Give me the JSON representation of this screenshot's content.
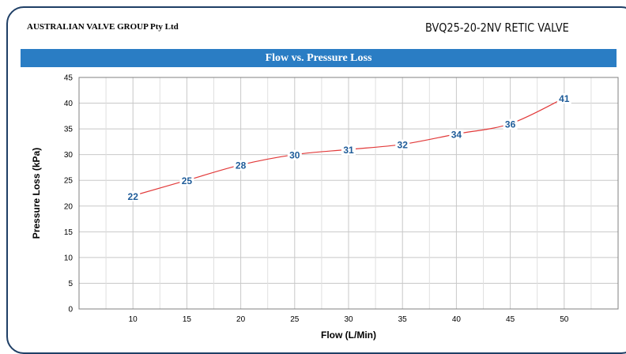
{
  "header": {
    "company": "AUSTRALIAN VALVE GROUP Pty Ltd",
    "model": "BVQ25-20-2NV RETIC VALVE"
  },
  "colors": {
    "banner": "#2a7dc4",
    "line": "#e23a3a",
    "data_label": "#1f5c99",
    "frame": "#1f3f66"
  },
  "chart_data": {
    "type": "line",
    "title": "Flow vs. Pressure Loss",
    "xlabel": "Flow (L/Min)",
    "ylabel": "Pressure Loss (kPa)",
    "x": [
      10,
      15,
      20,
      25,
      30,
      35,
      40,
      45,
      50
    ],
    "xticks": [
      10,
      15,
      20,
      25,
      30,
      35,
      40,
      45,
      50
    ],
    "xlim": [
      5,
      55
    ],
    "yticks": [
      0,
      5,
      10,
      15,
      20,
      25,
      30,
      35,
      40,
      45
    ],
    "ylim": [
      0,
      45
    ],
    "grid": true,
    "series": [
      {
        "values": [
          22,
          25,
          28,
          30,
          31,
          32,
          34,
          36,
          41
        ],
        "labels": [
          "22",
          "25",
          "28",
          "30",
          "31",
          "32",
          "34",
          "36",
          "41"
        ]
      }
    ]
  }
}
